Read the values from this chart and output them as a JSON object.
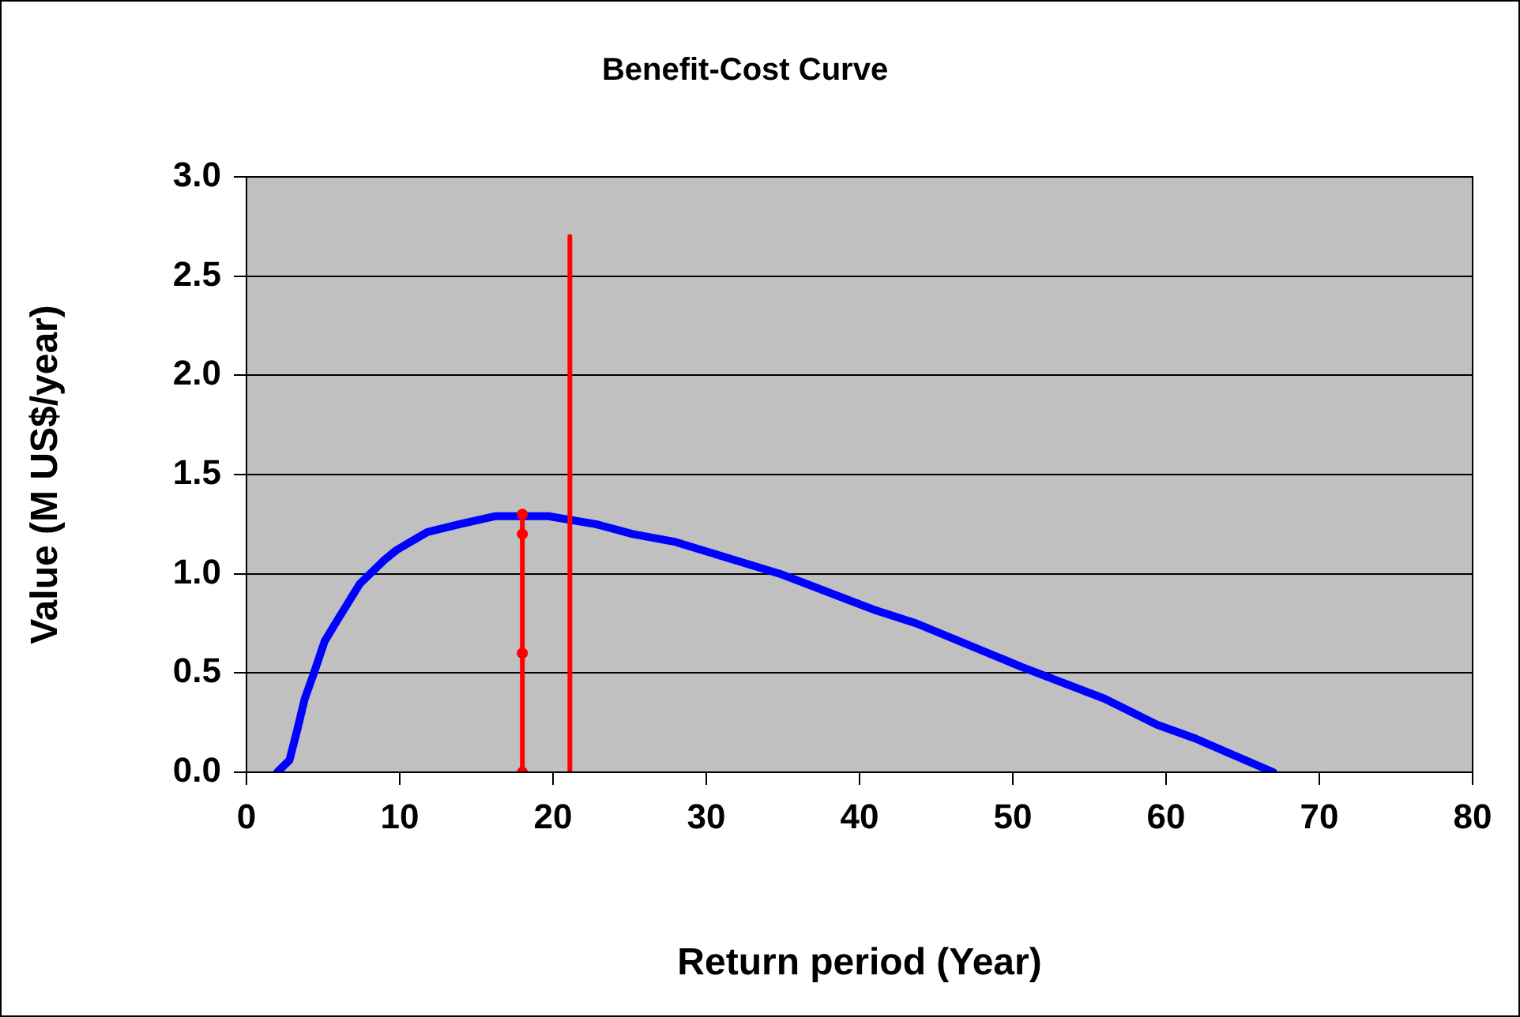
{
  "chart_data": {
    "type": "line",
    "title": "Benefit-Cost Curve",
    "xlabel": "Return period (Year)",
    "ylabel": "Value (M US$/year)",
    "xlim": [
      0,
      80
    ],
    "xticks": [
      0,
      10,
      20,
      30,
      40,
      50,
      60,
      70,
      80
    ],
    "ylim": [
      0,
      3
    ],
    "yticks": [
      {
        "value": 0,
        "label": "0.0"
      },
      {
        "value": 0.5,
        "label": "0.5"
      },
      {
        "value": 1,
        "label": "1.0"
      },
      {
        "value": 1.5,
        "label": "1.5"
      },
      {
        "value": 2,
        "label": "2.0"
      },
      {
        "value": 2.5,
        "label": "2.5"
      },
      {
        "value": 3,
        "label": "3.0"
      }
    ],
    "grid": "y",
    "legend": false,
    "marker": "none",
    "line_style": "solid",
    "series": [
      {
        "color": "#0000ff",
        "x": [
          2,
          2.8,
          3.3,
          3.8,
          4.4,
          5.1,
          5.8,
          7.4,
          9,
          9.8,
          11.8,
          13.9,
          16.2,
          19.7,
          22.8,
          25.2,
          28,
          34.8,
          40.9,
          43.7,
          50.6,
          56,
          59.4,
          61.9,
          67
        ],
        "values": [
          0,
          0.06,
          0.21,
          0.37,
          0.5,
          0.66,
          0.75,
          0.95,
          1.07,
          1.12,
          1.21,
          1.25,
          1.29,
          1.29,
          1.25,
          1.2,
          1.16,
          1,
          0.82,
          0.75,
          0.53,
          0.37,
          0.24,
          0.17,
          0
        ]
      },
      {
        "color": "#ff0000",
        "marker": "circle",
        "x": [
          18,
          18,
          18,
          18
        ],
        "values": [
          0,
          0.6,
          1.2,
          1.3
        ]
      },
      {
        "color": "#ff0000",
        "x": [
          21.1,
          21.1
        ],
        "values": [
          0,
          2.7
        ]
      }
    ]
  }
}
